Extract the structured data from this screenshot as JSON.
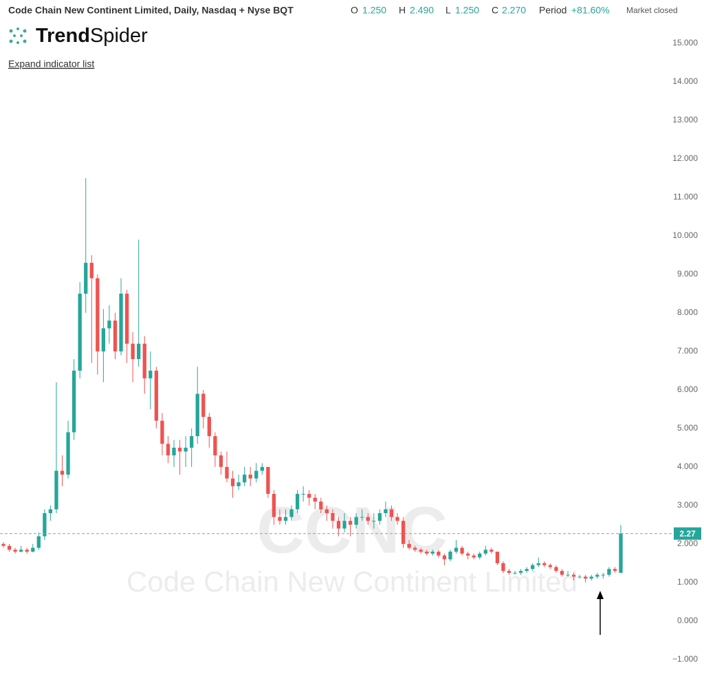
{
  "header": {
    "title": "Code Chain New Continent Limited, Daily, Nasdaq + Nyse BQT",
    "o_label": "O",
    "o_value": "1.250",
    "h_label": "H",
    "h_value": "2.490",
    "l_label": "L",
    "l_value": "1.250",
    "c_label": "C",
    "c_value": "2.270",
    "period_label": "Period",
    "period_value": "+81.60%",
    "status": "Market closed",
    "logo_bold": "Trend",
    "logo_light": "Spider",
    "expand": "Expand indicator list"
  },
  "chart_data": {
    "type": "candlestick",
    "watermark_symbol": "CCNC",
    "watermark_name": "Code Chain New Continent Limited",
    "up_color": "#26a69a",
    "down_color": "#ef5350",
    "open": [
      2.0,
      1.95,
      1.85,
      1.8,
      1.85,
      1.8,
      1.9,
      2.2,
      2.8,
      2.9,
      3.9,
      3.8,
      4.9,
      6.5,
      8.5,
      9.3,
      8.9,
      7.0,
      7.6,
      7.8,
      7.0,
      8.5,
      7.2,
      6.8,
      7.2,
      6.3,
      6.5,
      5.2,
      4.6,
      4.3,
      4.5,
      4.4,
      4.5,
      4.8,
      5.9,
      5.3,
      4.8,
      4.3,
      4.0,
      3.7,
      3.5,
      3.6,
      3.8,
      3.7,
      3.9,
      4.0,
      3.3,
      2.7,
      2.6,
      2.7,
      2.9,
      3.3,
      3.3,
      3.2,
      3.1,
      2.9,
      2.8,
      2.6,
      2.4,
      2.6,
      2.5,
      2.7,
      2.7,
      2.6,
      2.6,
      2.8,
      2.9,
      2.7,
      2.6,
      2.0,
      1.9,
      1.85,
      1.8,
      1.75,
      1.8,
      1.7,
      1.6,
      1.8,
      1.9,
      1.75,
      1.7,
      1.65,
      1.75,
      1.85,
      1.8,
      1.5,
      1.3,
      1.25,
      1.25,
      1.3,
      1.35,
      1.45,
      1.5,
      1.45,
      1.4,
      1.3,
      1.2,
      1.2,
      1.15,
      1.15,
      1.1,
      1.15,
      1.2,
      1.2,
      1.35,
      1.25
    ],
    "high": [
      2.05,
      2.0,
      1.9,
      1.95,
      1.9,
      2.0,
      2.3,
      2.9,
      3.0,
      6.2,
      4.3,
      5.2,
      6.8,
      8.8,
      11.5,
      9.5,
      9.0,
      8.1,
      8.2,
      8.0,
      8.9,
      8.6,
      7.5,
      9.9,
      7.4,
      7.0,
      6.6,
      5.4,
      4.8,
      4.7,
      4.7,
      4.8,
      5.0,
      6.6,
      6.0,
      5.4,
      4.9,
      4.4,
      4.4,
      3.9,
      3.8,
      4.0,
      4.0,
      4.1,
      4.1,
      4.0,
      3.4,
      2.9,
      2.9,
      3.0,
      3.4,
      3.5,
      3.4,
      3.3,
      3.2,
      3.0,
      2.9,
      2.7,
      2.8,
      2.7,
      2.8,
      2.9,
      2.8,
      2.8,
      2.9,
      3.1,
      3.0,
      2.8,
      2.7,
      2.1,
      1.95,
      1.9,
      1.85,
      1.85,
      1.85,
      1.75,
      1.85,
      2.1,
      1.95,
      1.8,
      1.75,
      1.8,
      1.95,
      1.9,
      1.8,
      1.55,
      1.35,
      1.3,
      1.35,
      1.4,
      1.5,
      1.65,
      1.55,
      1.5,
      1.45,
      1.35,
      1.3,
      1.25,
      1.2,
      1.2,
      1.2,
      1.25,
      1.25,
      1.4,
      1.4,
      2.49
    ],
    "low": [
      1.9,
      1.8,
      1.75,
      1.78,
      1.75,
      1.78,
      1.85,
      2.1,
      2.6,
      2.8,
      3.5,
      3.7,
      4.7,
      6.3,
      8.0,
      6.7,
      6.4,
      6.2,
      7.2,
      6.8,
      6.9,
      6.7,
      6.2,
      6.6,
      5.9,
      5.5,
      5.0,
      4.3,
      4.1,
      4.0,
      3.8,
      4.0,
      4.0,
      4.6,
      5.0,
      4.5,
      4.0,
      3.8,
      3.6,
      3.2,
      3.4,
      3.5,
      3.5,
      3.6,
      3.8,
      3.2,
      2.5,
      2.5,
      2.5,
      2.6,
      2.8,
      3.1,
      3.0,
      2.9,
      2.8,
      2.6,
      2.4,
      2.2,
      2.3,
      2.2,
      2.4,
      2.6,
      2.5,
      2.4,
      2.5,
      2.7,
      2.6,
      2.5,
      1.9,
      1.85,
      1.8,
      1.75,
      1.7,
      1.7,
      1.65,
      1.45,
      1.55,
      1.75,
      1.7,
      1.6,
      1.6,
      1.6,
      1.7,
      1.75,
      1.45,
      1.25,
      1.2,
      1.2,
      1.2,
      1.25,
      1.3,
      1.4,
      1.4,
      1.35,
      1.25,
      1.15,
      1.15,
      1.05,
      1.1,
      1.0,
      1.05,
      1.1,
      1.1,
      1.15,
      1.25,
      1.25
    ],
    "close": [
      1.95,
      1.85,
      1.8,
      1.85,
      1.8,
      1.9,
      2.2,
      2.8,
      2.9,
      3.9,
      3.8,
      4.9,
      6.5,
      8.5,
      9.3,
      8.9,
      7.0,
      7.6,
      7.8,
      7.0,
      8.5,
      7.2,
      6.8,
      7.2,
      6.3,
      6.5,
      5.2,
      4.6,
      4.3,
      4.5,
      4.4,
      4.5,
      4.8,
      5.9,
      5.3,
      4.8,
      4.3,
      4.0,
      3.7,
      3.5,
      3.6,
      3.8,
      3.7,
      3.9,
      4.0,
      3.3,
      2.7,
      2.6,
      2.7,
      2.9,
      3.3,
      3.3,
      3.2,
      3.1,
      2.9,
      2.8,
      2.6,
      2.4,
      2.6,
      2.5,
      2.7,
      2.7,
      2.6,
      2.6,
      2.8,
      2.9,
      2.7,
      2.6,
      2.0,
      1.9,
      1.85,
      1.8,
      1.75,
      1.8,
      1.7,
      1.6,
      1.8,
      1.9,
      1.75,
      1.7,
      1.65,
      1.75,
      1.85,
      1.8,
      1.5,
      1.3,
      1.25,
      1.25,
      1.3,
      1.35,
      1.45,
      1.5,
      1.45,
      1.4,
      1.3,
      1.2,
      1.2,
      1.15,
      1.15,
      1.1,
      1.15,
      1.2,
      1.2,
      1.35,
      1.3,
      2.27
    ],
    "last_price": {
      "value": 2.27,
      "label": "2.27"
    },
    "ylim": [
      -1.2,
      15.5
    ],
    "yticks": [
      {
        "value": 15,
        "label": "15.000"
      },
      {
        "value": 14,
        "label": "14.000"
      },
      {
        "value": 13,
        "label": "13.000"
      },
      {
        "value": 12,
        "label": "12.000"
      },
      {
        "value": 11,
        "label": "11.000"
      },
      {
        "value": 10,
        "label": "10.000"
      },
      {
        "value": 9,
        "label": "9.000"
      },
      {
        "value": 8,
        "label": "8.000"
      },
      {
        "value": 7,
        "label": "7.000"
      },
      {
        "value": 6,
        "label": "6.000"
      },
      {
        "value": 5,
        "label": "5.000"
      },
      {
        "value": 4,
        "label": "4.000"
      },
      {
        "value": 3,
        "label": "3.000"
      },
      {
        "value": 2,
        "label": "2.000"
      },
      {
        "value": 1,
        "label": "1.000"
      },
      {
        "value": 0,
        "label": "0.000"
      },
      {
        "value": -1,
        "label": "−1.000"
      }
    ]
  }
}
